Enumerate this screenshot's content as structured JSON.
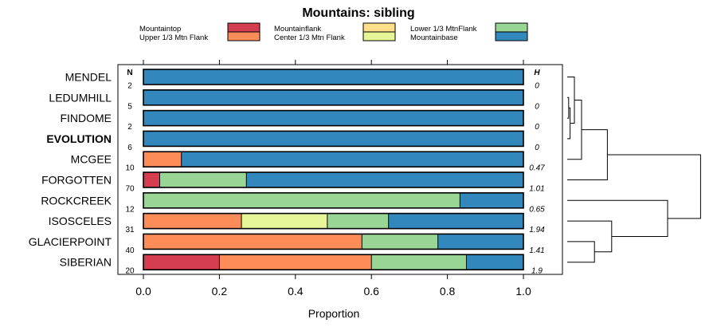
{
  "chart_data": {
    "type": "bar",
    "orientation": "horizontal",
    "stacked": true,
    "title": "Mountains: sibling",
    "xlabel": "Proportion",
    "xlim": [
      0,
      1
    ],
    "xticks": [
      "0.0",
      "0.2",
      "0.4",
      "0.6",
      "0.8",
      "1.0"
    ],
    "n_header": "N",
    "h_header": "H",
    "legend_placement": "top",
    "legend": [
      {
        "name": "Mountaintop",
        "color": "#d53e4f"
      },
      {
        "name": "Upper 1/3 Mtn Flank",
        "color": "#fc8d59"
      },
      {
        "name": "Mountainflank",
        "color": "#fee08b"
      },
      {
        "name": "Center 1/3 Mtn Flank",
        "color": "#e6f598"
      },
      {
        "name": "Lower 1/3 MtnFlank",
        "color": "#99d594"
      },
      {
        "name": "Mountainbase",
        "color": "#3288bd"
      }
    ],
    "rows": [
      {
        "label": "MENDEL",
        "bold": false,
        "n": "2",
        "h": "0",
        "segments": [
          0,
          0,
          0,
          0,
          0,
          1.0
        ]
      },
      {
        "label": "LEDUMHILL",
        "bold": false,
        "n": "5",
        "h": "0",
        "segments": [
          0,
          0,
          0,
          0,
          0,
          1.0
        ]
      },
      {
        "label": "FINDOME",
        "bold": false,
        "n": "2",
        "h": "0",
        "segments": [
          0,
          0,
          0,
          0,
          0,
          1.0
        ]
      },
      {
        "label": "EVOLUTION",
        "bold": true,
        "n": "6",
        "h": "0",
        "segments": [
          0,
          0,
          0,
          0,
          0,
          1.0
        ]
      },
      {
        "label": "MCGEE",
        "bold": false,
        "n": "10",
        "h": "0.47",
        "segments": [
          0,
          0.1,
          0,
          0,
          0,
          0.9
        ]
      },
      {
        "label": "FORGOTTEN",
        "bold": false,
        "n": "70",
        "h": "1.01",
        "segments": [
          0.043,
          0,
          0,
          0,
          0.228,
          0.729
        ]
      },
      {
        "label": "ROCKCREEK",
        "bold": false,
        "n": "12",
        "h": "0.65",
        "segments": [
          0,
          0,
          0,
          0,
          0.833,
          0.167
        ]
      },
      {
        "label": "ISOSCELES",
        "bold": false,
        "n": "31",
        "h": "1.94",
        "segments": [
          0,
          0.258,
          0,
          0.226,
          0.161,
          0.355
        ]
      },
      {
        "label": "GLACIERPOINT",
        "bold": false,
        "n": "40",
        "h": "1.41",
        "segments": [
          0,
          0.575,
          0,
          0,
          0.2,
          0.225
        ]
      },
      {
        "label": "SIBERIAN",
        "bold": false,
        "n": "20",
        "h": "1.9",
        "segments": [
          0.2,
          0.4,
          0,
          0,
          0.25,
          0.15
        ]
      }
    ],
    "dendrogram": {
      "leaf_order": [
        "MENDEL",
        "LEDUMHILL",
        "FINDOME",
        "EVOLUTION",
        "MCGEE",
        "FORGOTTEN",
        "ROCKCREEK",
        "ISOSCELES",
        "GLACIERPOINT",
        "SIBERIAN"
      ],
      "merges": [
        {
          "left": 1,
          "right": 2,
          "height": 0.01
        },
        {
          "left": "c0",
          "right": 3,
          "height": 0.02
        },
        {
          "left": 0,
          "right": "c1",
          "height": 0.05
        },
        {
          "left": "c2",
          "right": 4,
          "height": 0.1
        },
        {
          "left": 8,
          "right": 9,
          "height": 0.19
        },
        {
          "left": 7,
          "right": "c4",
          "height": 0.31
        },
        {
          "left": 6,
          "right": "c5",
          "height": 0.7
        },
        {
          "left": "c3",
          "right": 5,
          "height": 0.28
        },
        {
          "left": "c7",
          "right": "c6",
          "height": 0.93
        }
      ]
    }
  }
}
